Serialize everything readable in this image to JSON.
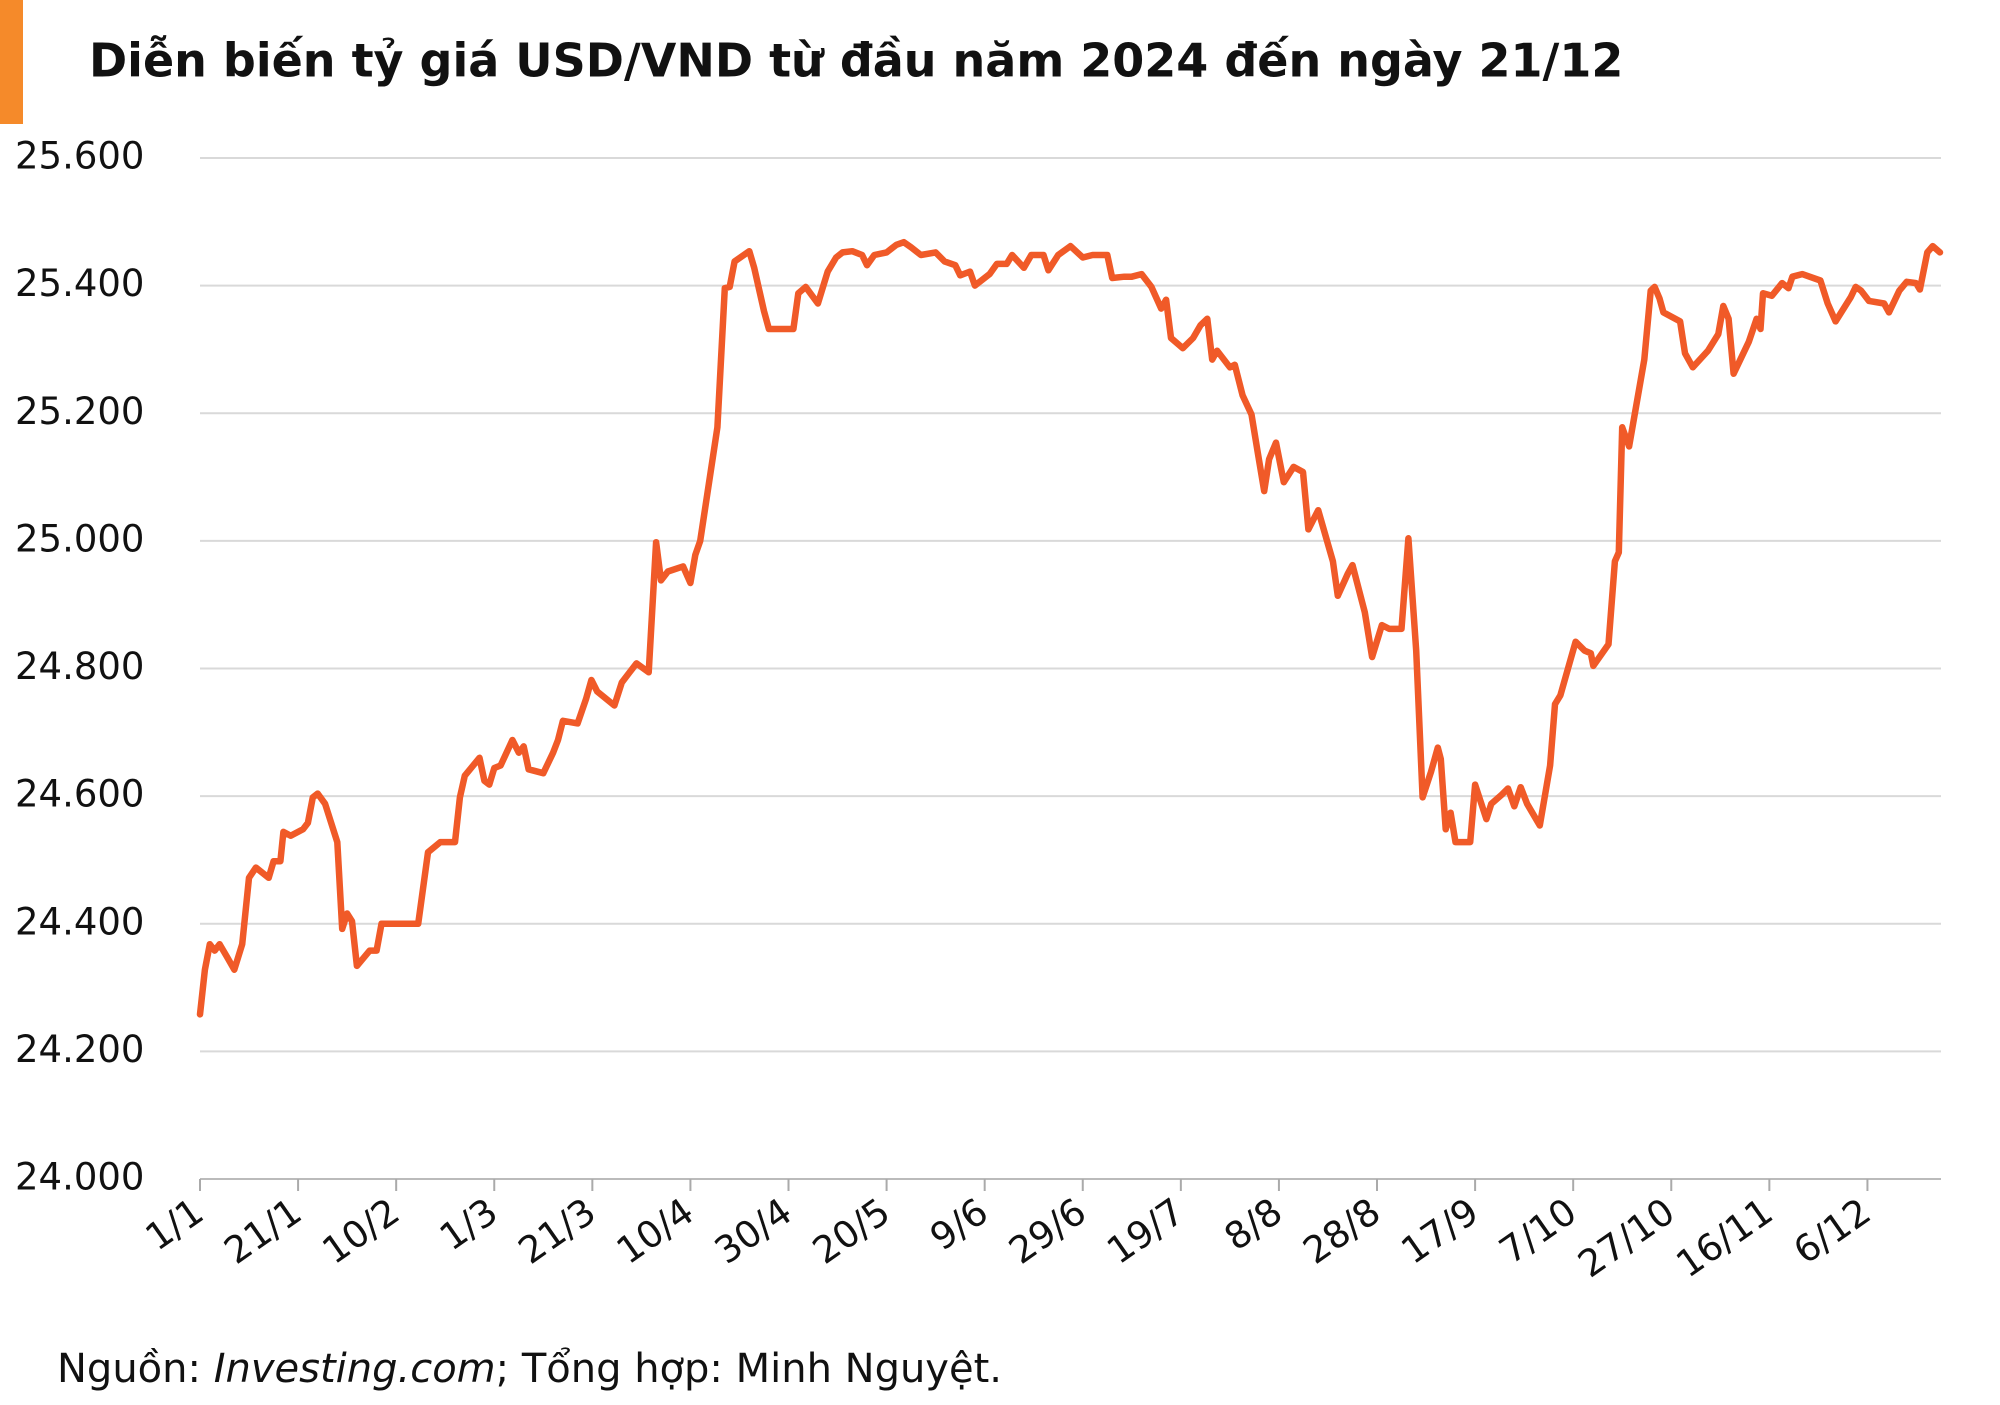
{
  "chart_data": {
    "type": "line",
    "title": "Diễn biến tỷ giá USD/VND từ đầu năm 2024 đến ngày 21/12",
    "source": {
      "prefix": "Nguồn: ",
      "site": "Investing.com",
      "suffix": "; Tổng hợp: Minh Nguyệt."
    },
    "color": "#f05a28",
    "grid": true,
    "xlim": [
      0,
      355
    ],
    "ylim": [
      24000,
      25600
    ],
    "xticks": [
      {
        "value": 0,
        "label": "1/1"
      },
      {
        "value": 20,
        "label": "21/1"
      },
      {
        "value": 40,
        "label": "10/2"
      },
      {
        "value": 60,
        "label": "1/3"
      },
      {
        "value": 80,
        "label": "21/3"
      },
      {
        "value": 100,
        "label": "10/4"
      },
      {
        "value": 120,
        "label": "30/4"
      },
      {
        "value": 140,
        "label": "20/5"
      },
      {
        "value": 160,
        "label": "9/6"
      },
      {
        "value": 180,
        "label": "29/6"
      },
      {
        "value": 200,
        "label": "19/7"
      },
      {
        "value": 220,
        "label": "8/8"
      },
      {
        "value": 240,
        "label": "28/8"
      },
      {
        "value": 260,
        "label": "17/9"
      },
      {
        "value": 280,
        "label": "7/10"
      },
      {
        "value": 300,
        "label": "27/10"
      },
      {
        "value": 320,
        "label": "16/11"
      },
      {
        "value": 340,
        "label": "6/12"
      }
    ],
    "yticks": [
      {
        "value": 24000,
        "label": "24.000"
      },
      {
        "value": 24200,
        "label": "24.200"
      },
      {
        "value": 24400,
        "label": "24.400"
      },
      {
        "value": 24600,
        "label": "24.600"
      },
      {
        "value": 24800,
        "label": "24.800"
      },
      {
        "value": 25000,
        "label": "25.000"
      },
      {
        "value": 25200,
        "label": "25.200"
      },
      {
        "value": 25400,
        "label": "25.400"
      },
      {
        "value": 25600,
        "label": "25.600"
      }
    ],
    "x": [
      0,
      1,
      2,
      3,
      4,
      5.5,
      7,
      8.6,
      10,
      11.4,
      14,
      15,
      16.4,
      17,
      18.5,
      21,
      22,
      23,
      24,
      25.5,
      28,
      29,
      30,
      31,
      32,
      34.6,
      36,
      37,
      40,
      44.5,
      46.5,
      49,
      52,
      53,
      54,
      57,
      58,
      59,
      60,
      61.3,
      63.7,
      65,
      66,
      67,
      70,
      72,
      73,
      74,
      77,
      78.7,
      79.8,
      81,
      84.5,
      86,
      87.6,
      89,
      91.5,
      93,
      94,
      95.4,
      98.5,
      100,
      101,
      102,
      105.5,
      107,
      108,
      109,
      112,
      113,
      115,
      116,
      121,
      122,
      123.5,
      126,
      128,
      129.7,
      131,
      133,
      135,
      136,
      137.5,
      140,
      142,
      143.5,
      145,
      147,
      150,
      151.8,
      154,
      155,
      157,
      158,
      161,
      162.5,
      164.5,
      165.6,
      168,
      169.5,
      172,
      173,
      175,
      177.5,
      180,
      182,
      185,
      186,
      188.5,
      190,
      192,
      194,
      196,
      197,
      198,
      200.4,
      202.5,
      204,
      205.4,
      206.4,
      207.4,
      210,
      211,
      212.6,
      214.4,
      215.7,
      217,
      218,
      219.4,
      221,
      223,
      224.9,
      226,
      228,
      231,
      232,
      234,
      235,
      237.5,
      239,
      241,
      242.5,
      245,
      246.4,
      248,
      249.3,
      251,
      252.4,
      253,
      254,
      255,
      256,
      259,
      260,
      262.3,
      263.3,
      265.4,
      266.7,
      268,
      269.3,
      270.6,
      273.2,
      275.3,
      276.3,
      277.4,
      280.5,
      282.3,
      283.6,
      284.1,
      287.2,
      288.5,
      289.3,
      290,
      291.4,
      294.5,
      295.8,
      296.6,
      297.6,
      298.4,
      301.8,
      302.8,
      304.4,
      307.5,
      309.6,
      310.6,
      311.7,
      312.7,
      315.8,
      317.4,
      318.2,
      318.7,
      320.5,
      322.6,
      323.9,
      324.7,
      326.7,
      330.4,
      331.9,
      333.5,
      336.6,
      337.6,
      338.7,
      340.3,
      343.4,
      344.4,
      346.5,
      348,
      349.9,
      350.7,
      352.2,
      353.3,
      354.8
    ],
    "values": [
      24258,
      24328,
      24368,
      24358,
      24368,
      24348,
      24328,
      24368,
      24472,
      24488,
      24472,
      24498,
      24498,
      24544,
      24538,
      24548,
      24558,
      24598,
      24604,
      24588,
      24528,
      24392,
      24416,
      24404,
      24334,
      24358,
      24358,
      24400,
      24400,
      24400,
      24512,
      24528,
      24528,
      24598,
      24632,
      24660,
      24624,
      24618,
      24644,
      24648,
      24688,
      24668,
      24678,
      24642,
      24636,
      24668,
      24688,
      24718,
      24714,
      24752,
      24782,
      24764,
      24742,
      24778,
      24794,
      24808,
      24794,
      24998,
      24938,
      24952,
      24960,
      24934,
      24978,
      25000,
      25178,
      25396,
      25398,
      25438,
      25454,
      25428,
      25360,
      25332,
      25332,
      25388,
      25398,
      25372,
      25422,
      25444,
      25452,
      25454,
      25448,
      25432,
      25448,
      25452,
      25464,
      25468,
      25460,
      25448,
      25452,
      25438,
      25432,
      25416,
      25422,
      25400,
      25418,
      25434,
      25434,
      25448,
      25428,
      25448,
      25448,
      25424,
      25448,
      25462,
      25444,
      25448,
      25448,
      25412,
      25414,
      25414,
      25418,
      25398,
      25364,
      25378,
      25318,
      25302,
      25318,
      25338,
      25348,
      25284,
      25298,
      25272,
      25276,
      25228,
      25198,
      25138,
      25078,
      25128,
      25154,
      25092,
      25116,
      25108,
      25018,
      25048,
      24968,
      24914,
      24948,
      24962,
      24888,
      24818,
      24868,
      24862,
      24862,
      25004,
      24828,
      24598,
      24638,
      24676,
      24658,
      24548,
      24574,
      24528,
      24528,
      24618,
      24564,
      24588,
      24602,
      24612,
      24584,
      24614,
      24588,
      24554,
      24648,
      24744,
      24758,
      24842,
      24828,
      24824,
      24804,
      24838,
      24968,
      24982,
      25178,
      25148,
      25284,
      25392,
      25398,
      25380,
      25358,
      25344,
      25294,
      25272,
      25298,
      25324,
      25368,
      25348,
      25262,
      25312,
      25348,
      25332,
      25388,
      25384,
      25404,
      25396,
      25414,
      25418,
      25408,
      25372,
      25344,
      25382,
      25398,
      25392,
      25376,
      25372,
      25358,
      25392,
      25406,
      25404,
      25394,
      25452,
      25462,
      25452
    ]
  }
}
